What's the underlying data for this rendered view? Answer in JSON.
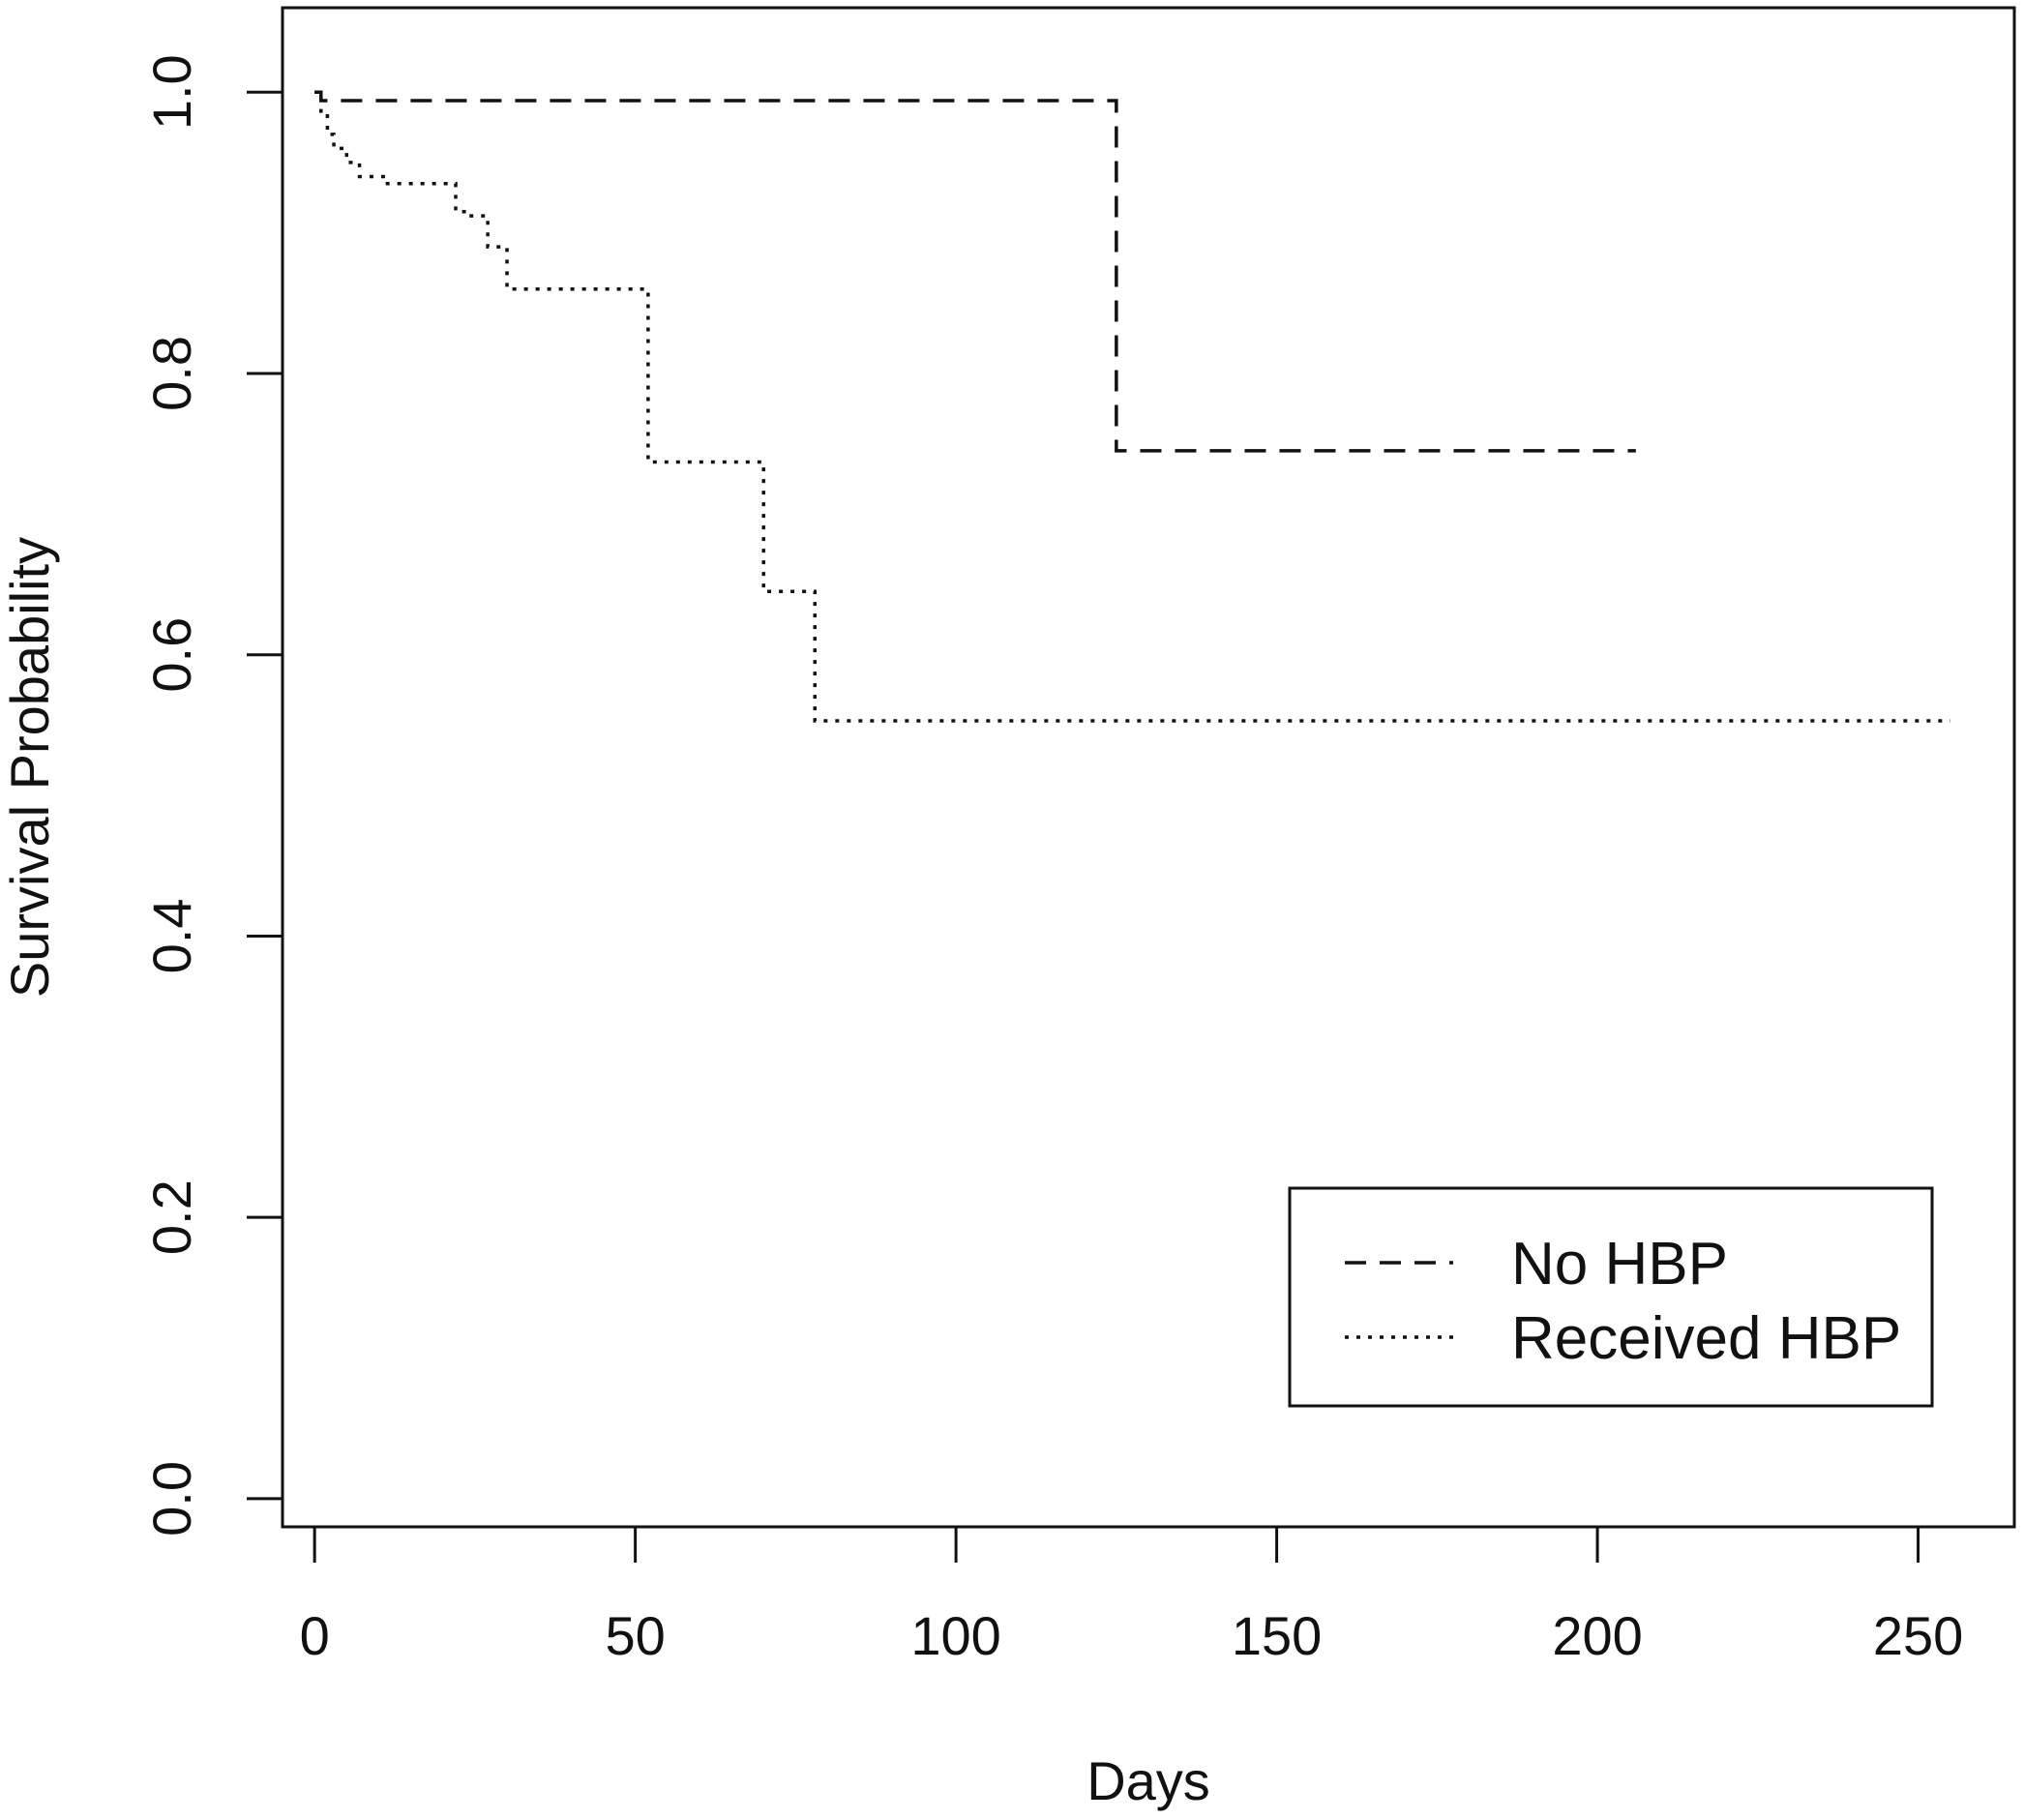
{
  "chart_data": {
    "type": "line",
    "xlabel": "Days",
    "ylabel": "Survival Probability",
    "xlim": [
      -5,
      265
    ],
    "ylim": [
      -0.02,
      1.06
    ],
    "xticks": [
      0,
      50,
      100,
      150,
      200,
      250
    ],
    "yticks": [
      0.0,
      0.2,
      0.4,
      0.6,
      0.8,
      1.0
    ],
    "xtick_labels": [
      "0",
      "50",
      "100",
      "150",
      "200",
      "250"
    ],
    "ytick_labels": [
      "0.0",
      "0.2",
      "0.4",
      "0.6",
      "0.8",
      "1.0"
    ],
    "grid": false,
    "legend_position": "bottom-right",
    "step": true,
    "series": [
      {
        "name": "No HBP",
        "line_style": "dashed",
        "color": "#111111",
        "x": [
          0,
          1,
          125,
          206
        ],
        "y": [
          1.0,
          0.994,
          0.745,
          0.745
        ]
      },
      {
        "name": "Received HBP",
        "line_style": "dotted",
        "color": "#111111",
        "x": [
          0,
          1,
          2,
          3,
          5,
          7,
          11,
          22,
          24,
          27,
          30,
          52,
          70,
          78,
          255
        ],
        "y": [
          1.0,
          0.985,
          0.97,
          0.96,
          0.95,
          0.94,
          0.935,
          0.915,
          0.912,
          0.89,
          0.86,
          0.737,
          0.645,
          0.553,
          0.553
        ]
      }
    ]
  }
}
